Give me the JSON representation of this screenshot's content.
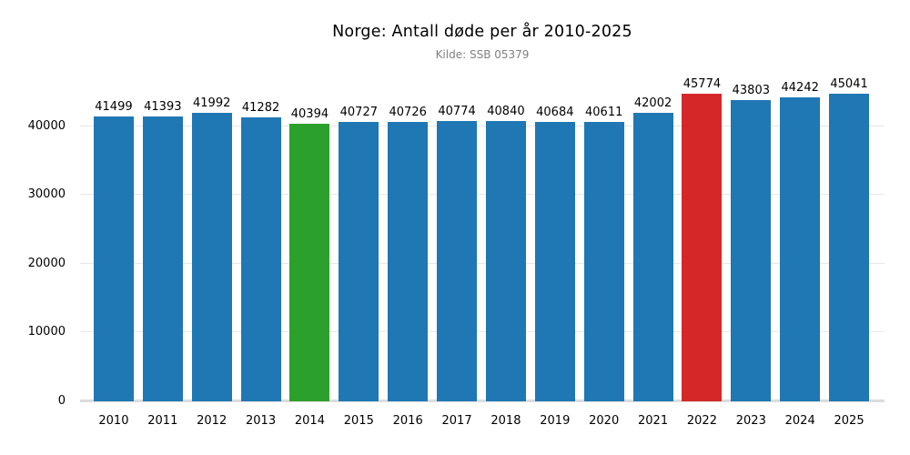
{
  "chart_data": {
    "type": "bar",
    "title": "Norge: Antall døde per år 2010-2025",
    "subtitle": "Kilde: SSB 05379",
    "categories": [
      "2010",
      "2011",
      "2012",
      "2013",
      "2014",
      "2015",
      "2016",
      "2017",
      "2018",
      "2019",
      "2020",
      "2021",
      "2022",
      "2023",
      "2024",
      "2025"
    ],
    "values": [
      41499,
      41393,
      41992,
      41282,
      40394,
      40727,
      40726,
      40774,
      40840,
      40684,
      40611,
      42002,
      45774,
      43803,
      44242,
      45041
    ],
    "bar_colors": [
      "#1f77b4",
      "#1f77b4",
      "#1f77b4",
      "#1f77b4",
      "#2ca02c",
      "#1f77b4",
      "#1f77b4",
      "#1f77b4",
      "#1f77b4",
      "#1f77b4",
      "#1f77b4",
      "#1f77b4",
      "#d62728",
      "#1f77b4",
      "#1f77b4",
      "#1f77b4"
    ],
    "default_bar_color": "#1f77b4",
    "highlight_colors": {
      "2014": "#2ca02c",
      "2022": "#d62728"
    },
    "value_labels_shown": true,
    "xlabel": "",
    "ylabel": "",
    "yticks": [
      0,
      10000,
      20000,
      30000,
      40000
    ],
    "ylim": [
      0,
      47152
    ],
    "grid": true,
    "gridline_color": "#e8e8e8",
    "baseline_color": "#dcdcdc",
    "legend": "none",
    "background_color": "#ffffff",
    "title_color": "#000000",
    "subtitle_color": "#808080"
  }
}
